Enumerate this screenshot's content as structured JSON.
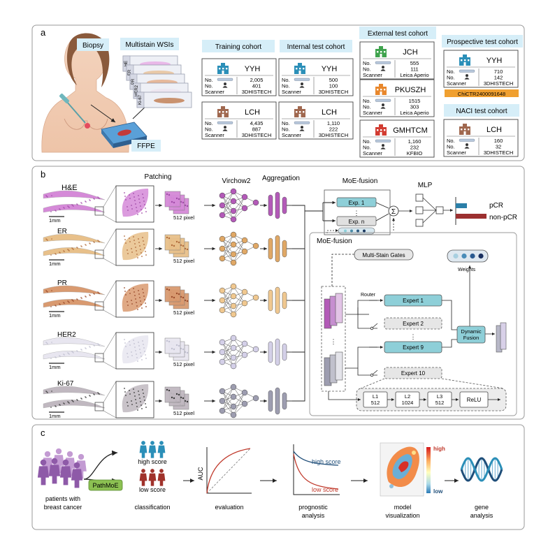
{
  "panel_a": {
    "letter": "a",
    "biopsy_label": "Biopsy",
    "wsi_label": "Multistain WSIs",
    "ffpe_label": "FFPE",
    "stain_tabs": [
      "HE",
      "ER",
      "PR",
      "HER2",
      "Ki-67"
    ],
    "row_labels": [
      "No.",
      "No.",
      "Scanner"
    ],
    "training_title": "Training  cohort",
    "internal_title": "Internal test cohort",
    "external_title": "External test cohort",
    "prospective_title": "Prospective test cohort",
    "naci_title": "NACI test cohort",
    "cards": {
      "train_yyh": {
        "name": "YYH",
        "slides": "2,005",
        "patients": "401",
        "scanner": "3DHISTECH"
      },
      "train_lch": {
        "name": "LCH",
        "slides": "4,435",
        "patients": "887",
        "scanner": "3DHISTECH"
      },
      "int_yyh": {
        "name": "YYH",
        "slides": "500",
        "patients": "100",
        "scanner": "3DHISTECH"
      },
      "int_lch": {
        "name": "LCH",
        "slides": "1,110",
        "patients": "222",
        "scanner": "3DHISTECH"
      },
      "ext_jch": {
        "name": "JCH",
        "slides": "555",
        "patients": "111",
        "scanner": "Leica Aperio"
      },
      "ext_pkuszh": {
        "name": "PKUSZH",
        "slides": "1515",
        "patients": "303",
        "scanner": "Leica Aperio"
      },
      "ext_gmhtcm": {
        "name": "GMHTCM",
        "slides": "1,160",
        "patients": "232",
        "scanner": "KFBIO"
      },
      "pro_yyh": {
        "name": "YYH",
        "slides": "710",
        "patients": "142",
        "scanner": "3DHISTECH"
      },
      "naci_lch": {
        "name": "LCH",
        "slides": "160",
        "patients": "32",
        "scanner": "3DHISTECH"
      }
    },
    "trial_id": "ChiCTR2400091648",
    "colors": {
      "teal": "#2b8fb8",
      "brown": "#a0684f",
      "green": "#3fa34d",
      "orange": "#e8872c",
      "red": "#d23c32",
      "header_bg": "#d6eef8"
    }
  },
  "panel_b": {
    "letter": "b",
    "stains": [
      "H&E",
      "ER",
      "PR",
      "HER2",
      "Ki-67"
    ],
    "scale_label": "1mm",
    "patch_label": "512 pixel",
    "headers": {
      "patching": "Patching",
      "virchow": "Virchow2",
      "aggregation": "Aggregation",
      "moe": "MoE-fusion",
      "mlp": "MLP"
    },
    "experts_top": {
      "exp1": "Exp. 1",
      "expn": "Exp. n",
      "sum": "Σ",
      "dots": "⋮"
    },
    "outputs": {
      "pcr": "pCR",
      "nonpcr": "non-pCR"
    },
    "detail": {
      "title": "MoE-fusion",
      "gates": "Multi-Stain Gates",
      "router": "Router",
      "weights": "Weights",
      "experts": [
        "Expert 1",
        "Expert 2",
        "Expert 9",
        "Expert 10"
      ],
      "fusion": [
        "Dynamic",
        "Fusion"
      ],
      "layers": [
        {
          "name": "L1",
          "dim": "512"
        },
        {
          "name": "L2",
          "dim": "1024"
        },
        {
          "name": "L3",
          "dim": "512"
        }
      ],
      "relu": "ReLU"
    },
    "stain_colors": [
      "#b35ab8",
      "#e0a866",
      "#f0c890",
      "#d4d0e8",
      "#9d9db0"
    ]
  },
  "panel_c": {
    "letter": "c",
    "patients_label": [
      "patients with",
      "breast cancer"
    ],
    "model_label": "PathMoE",
    "high_score": "high score",
    "low_score": "low score",
    "classification": "classification",
    "auc": "AUC",
    "evaluation": "evaluation",
    "prognostic": [
      "prognostic",
      "analysis"
    ],
    "curve_high": "high score",
    "curve_low": "low score",
    "model_vis": [
      "model",
      "visualization"
    ],
    "scale_high": "high",
    "scale_low": "low",
    "gene": [
      "gene",
      "analysis"
    ]
  }
}
